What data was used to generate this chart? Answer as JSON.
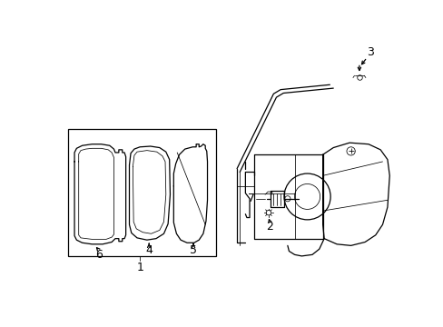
{
  "bg_color": "#ffffff",
  "line_color": "#000000",
  "lw": 0.9,
  "tlw": 0.55,
  "fig_w": 4.89,
  "fig_h": 3.6,
  "dpi": 100
}
